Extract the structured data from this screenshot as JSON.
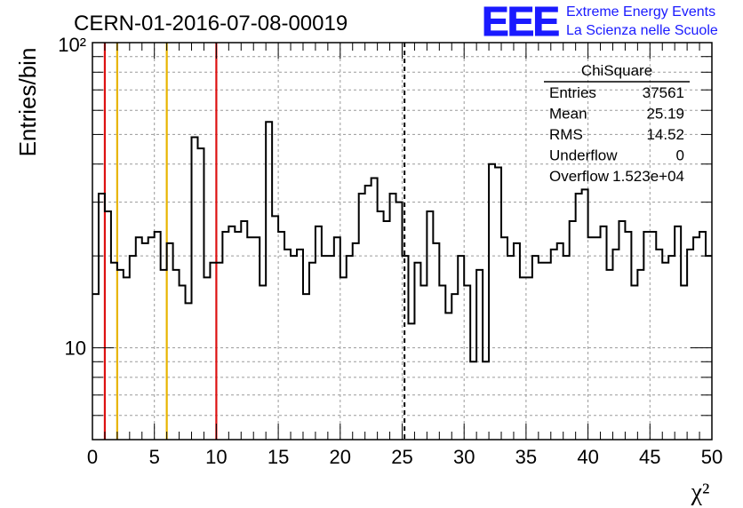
{
  "title": "CERN-01-2016-07-08-00019",
  "logo": {
    "mark": "EEE",
    "line1": "Extreme Energy Events",
    "line2": "La Scienza nelle Scuole",
    "color": "#1a1aff"
  },
  "stats": {
    "name": "ChiSquare",
    "rows": [
      {
        "label": "Entries",
        "value": "37561"
      },
      {
        "label": "Mean",
        "value": "25.19"
      },
      {
        "label": "RMS",
        "value": "14.52"
      },
      {
        "label": "Underflow",
        "value": "0"
      },
      {
        "label": "Overflow",
        "value": "1.523e+04"
      }
    ]
  },
  "chart_data": {
    "type": "bar",
    "histogram": true,
    "title": "CERN-01-2016-07-08-00019",
    "xlabel": "χ²",
    "ylabel": "Entries/bin",
    "xlim": [
      0,
      50
    ],
    "ylim": [
      5,
      100
    ],
    "yscale": "log",
    "grid": true,
    "bin_width": 0.5,
    "x_ticks": [
      "0",
      "5",
      "10",
      "15",
      "20",
      "25",
      "30",
      "35",
      "40",
      "45",
      "50"
    ],
    "y_ticks": [
      "10",
      "10²"
    ],
    "bin_low_edges": [
      0,
      0.5,
      1,
      1.5,
      2,
      2.5,
      3,
      3.5,
      4,
      4.5,
      5,
      5.5,
      6,
      6.5,
      7,
      7.5,
      8,
      8.5,
      9,
      9.5,
      10,
      10.5,
      11,
      11.5,
      12,
      12.5,
      13,
      13.5,
      14,
      14.5,
      15,
      15.5,
      16,
      16.5,
      17,
      17.5,
      18,
      18.5,
      19,
      19.5,
      20,
      20.5,
      21,
      21.5,
      22,
      22.5,
      23,
      23.5,
      24,
      24.5,
      25,
      25.5,
      26,
      26.5,
      27,
      27.5,
      28,
      28.5,
      29,
      29.5,
      30,
      30.5,
      31,
      31.5,
      32,
      32.5,
      33,
      33.5,
      34,
      34.5,
      35,
      35.5,
      36,
      36.5,
      37,
      37.5,
      38,
      38.5,
      39,
      39.5,
      40,
      40.5,
      41,
      41.5,
      42,
      42.5,
      43,
      43.5,
      44,
      44.5,
      45,
      45.5,
      46,
      46.5,
      47,
      47.5,
      48,
      48.5,
      49,
      49.5
    ],
    "values": [
      15,
      32,
      28,
      19,
      18,
      17,
      20,
      23,
      22,
      23,
      24,
      18,
      22,
      18,
      16,
      14,
      49,
      45,
      17,
      19,
      19,
      24,
      25,
      24,
      26,
      23,
      23,
      16,
      55,
      27,
      24,
      21,
      20,
      21,
      15,
      19,
      25,
      20,
      20,
      23,
      17,
      20,
      22,
      32,
      34,
      36,
      28,
      26,
      32,
      30,
      20,
      12,
      19,
      16,
      28,
      22,
      16,
      13,
      15,
      20,
      16,
      9,
      18,
      9,
      40,
      39,
      23,
      20,
      22,
      17,
      17,
      20,
      19,
      19,
      21,
      22,
      20,
      26,
      32,
      33,
      23,
      23,
      25,
      18,
      21,
      26,
      24,
      16,
      18,
      24,
      24,
      21,
      19,
      20,
      25,
      16,
      21,
      23,
      24,
      20
    ],
    "reference_lines": [
      {
        "x": 1,
        "color": "#dd1111",
        "style": "solid"
      },
      {
        "x": 2,
        "color": "#e8b400",
        "style": "solid"
      },
      {
        "x": 6,
        "color": "#e8b400",
        "style": "solid"
      },
      {
        "x": 10,
        "color": "#dd1111",
        "style": "solid"
      },
      {
        "x": 25.19,
        "color": "#000000",
        "style": "dashed"
      }
    ]
  }
}
